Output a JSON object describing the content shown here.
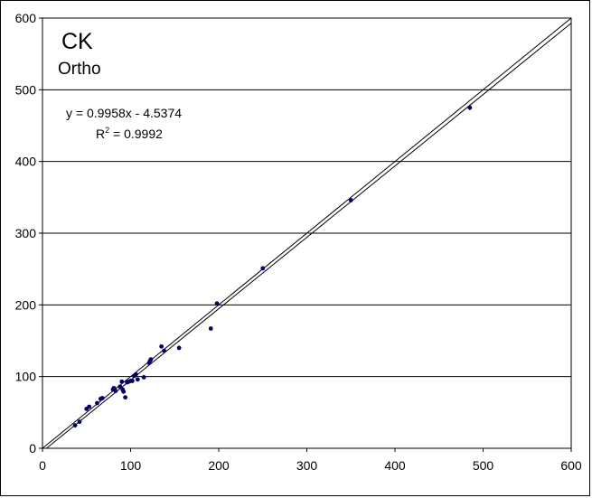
{
  "chart_data": {
    "type": "scatter",
    "annotations": {
      "title_main": "CK",
      "title_sub": "Ortho",
      "equation": "y = 0.9958x - 4.5374",
      "r2_prefix": "R",
      "r2_sup": "2",
      "r2_value": " = 0.9992"
    },
    "xlim": [
      0,
      600
    ],
    "ylim": [
      0,
      600
    ],
    "xticks": [
      0,
      100,
      200,
      300,
      400,
      500,
      600
    ],
    "yticks": [
      0,
      100,
      200,
      300,
      400,
      500,
      600
    ],
    "grid": "horizontal",
    "trendline": {
      "slope": 0.9958,
      "intercept": -4.5374
    },
    "identity_line": {
      "slope": 1,
      "intercept": 0
    },
    "points": [
      [
        37,
        32
      ],
      [
        42,
        37
      ],
      [
        50,
        55
      ],
      [
        53,
        58
      ],
      [
        62,
        63
      ],
      [
        66,
        69
      ],
      [
        68,
        70
      ],
      [
        80,
        82
      ],
      [
        81,
        84
      ],
      [
        83,
        80
      ],
      [
        88,
        86
      ],
      [
        90,
        93
      ],
      [
        91,
        82
      ],
      [
        92,
        79
      ],
      [
        94,
        71
      ],
      [
        96,
        92
      ],
      [
        98,
        93
      ],
      [
        100,
        94
      ],
      [
        102,
        94
      ],
      [
        104,
        101
      ],
      [
        106,
        103
      ],
      [
        108,
        96
      ],
      [
        115,
        99
      ],
      [
        121,
        119
      ],
      [
        122,
        122
      ],
      [
        123,
        124
      ],
      [
        135,
        142
      ],
      [
        138,
        136
      ],
      [
        155,
        140
      ],
      [
        191,
        167
      ],
      [
        198,
        202
      ],
      [
        250,
        251
      ],
      [
        350,
        346
      ],
      [
        485,
        475
      ]
    ],
    "colors": {
      "points": "#000066",
      "lines": "#000000",
      "grid": "#000000"
    }
  }
}
